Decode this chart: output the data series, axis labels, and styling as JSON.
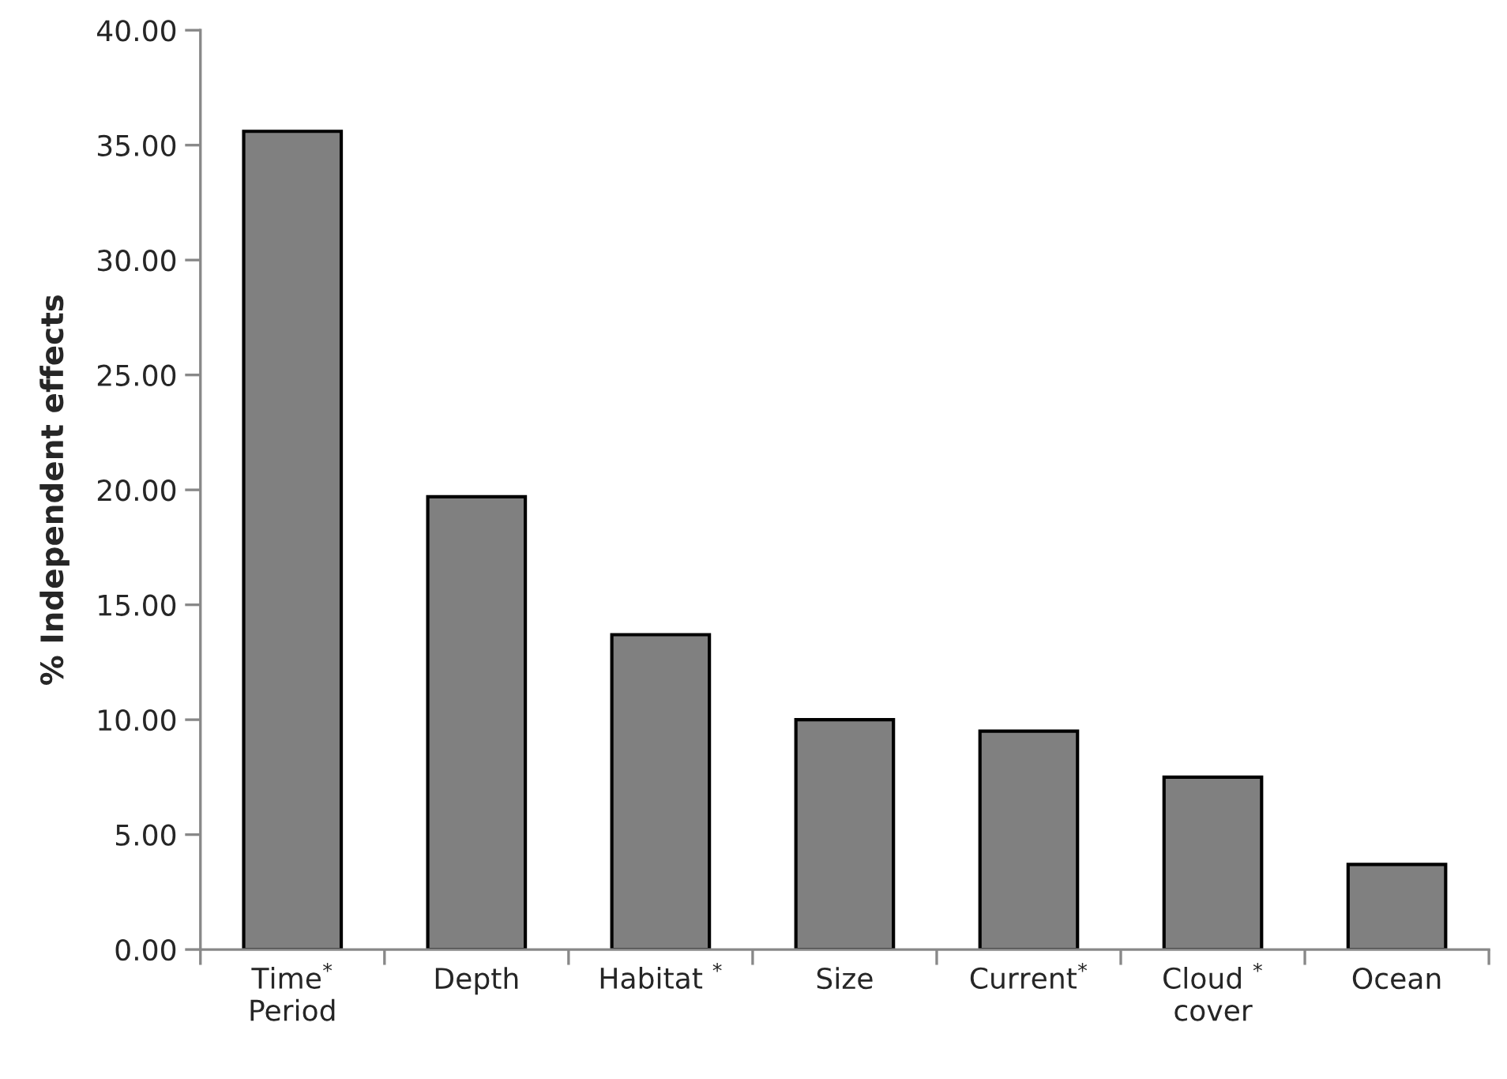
{
  "chart_data": {
    "type": "bar",
    "ylabel": "% Independent effects",
    "categories": [
      "Time$^{*}$\nPeriod",
      "Depth",
      "Habitat $^{*}$",
      "Size",
      "Current$^{*}$",
      "Cloud $^{*}$\ncover",
      "Ocean"
    ],
    "values": [
      35.6,
      19.7,
      13.7,
      10.0,
      9.5,
      7.5,
      3.7
    ],
    "color": "#808080",
    "ylim": [
      0,
      40
    ],
    "yticks": [
      {
        "value": 0,
        "label": "0.00"
      },
      {
        "value": 5,
        "label": "5.00"
      },
      {
        "value": 10,
        "label": "10.00"
      },
      {
        "value": 15,
        "label": "15.00"
      },
      {
        "value": 20,
        "label": "20.00"
      },
      {
        "value": 25,
        "label": "25.00"
      },
      {
        "value": 30,
        "label": "30.00"
      },
      {
        "value": 35,
        "label": "35.00"
      },
      {
        "value": 40,
        "label": "40.00"
      }
    ],
    "grid": false
  }
}
